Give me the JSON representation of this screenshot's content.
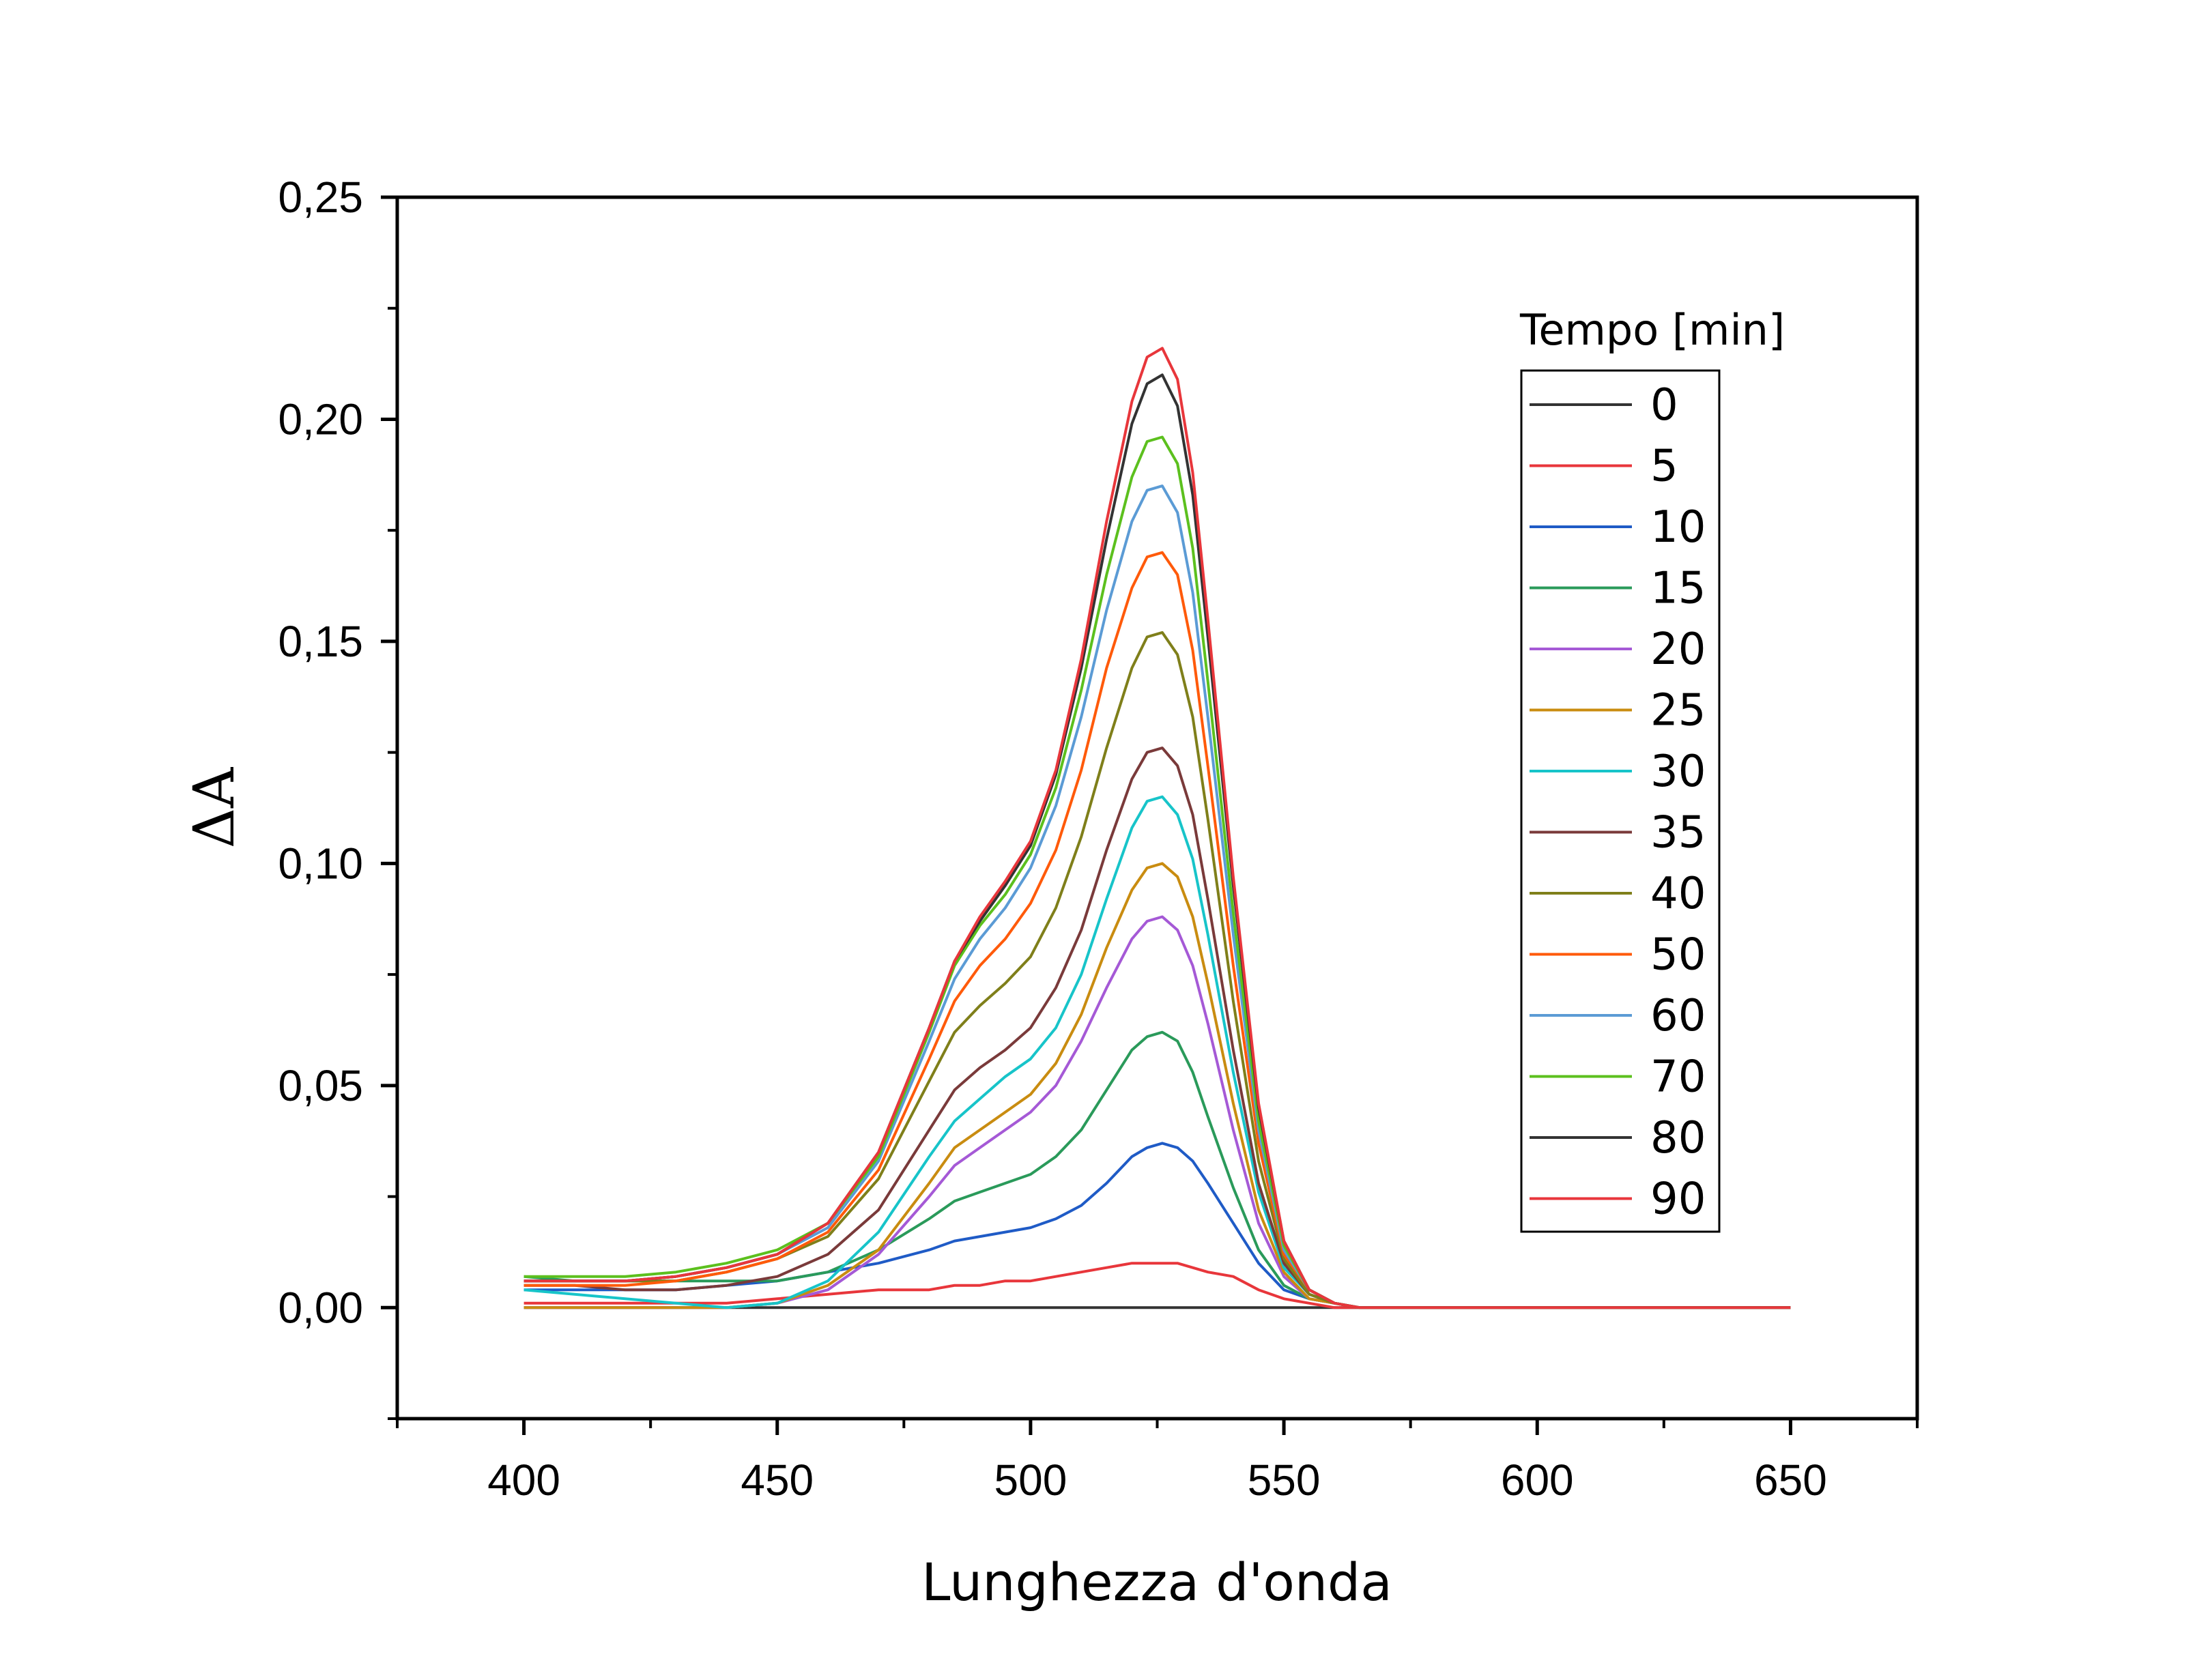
{
  "chart_data": {
    "type": "line",
    "title": "",
    "xlabel": "Lunghezza d'onda",
    "ylabel": "ΔA",
    "xlim": [
      375,
      675
    ],
    "ylim": [
      -0.025,
      0.25
    ],
    "xticks": [
      400,
      450,
      500,
      550,
      600,
      650
    ],
    "xtick_labels": [
      "400",
      "450",
      "500",
      "550",
      "600",
      "650"
    ],
    "yticks": [
      0.0,
      0.05,
      0.1,
      0.15,
      0.2,
      0.25
    ],
    "ytick_labels": [
      "0,00",
      "0,05",
      "0,10",
      "0,15",
      "0,20",
      "0,25"
    ],
    "grid": false,
    "legend_title": "Tempo [min]",
    "legend_position": "top-right",
    "x": [
      400,
      410,
      420,
      430,
      440,
      450,
      460,
      470,
      480,
      485,
      490,
      495,
      500,
      505,
      510,
      515,
      520,
      523,
      526,
      529,
      532,
      535,
      540,
      545,
      550,
      555,
      560,
      565,
      570,
      580,
      590,
      600,
      620,
      650
    ],
    "series": [
      {
        "name": "0",
        "color": "#333333",
        "values": [
          0,
          0,
          0,
          0,
          0,
          0,
          0,
          0,
          0,
          0,
          0,
          0,
          0,
          0,
          0,
          0,
          0,
          0,
          0,
          0,
          0,
          0,
          0,
          0,
          0,
          0,
          0,
          0,
          0,
          0,
          0,
          0,
          0,
          0
        ]
      },
      {
        "name": "5",
        "color": "#e8363b",
        "values": [
          0.001,
          0.001,
          0.001,
          0.001,
          0.001,
          0.002,
          0.003,
          0.004,
          0.004,
          0.005,
          0.005,
          0.006,
          0.006,
          0.007,
          0.008,
          0.009,
          0.01,
          0.01,
          0.01,
          0.01,
          0.009,
          0.008,
          0.007,
          0.004,
          0.002,
          0.001,
          0.0,
          0.0,
          0.0,
          0.0,
          0.0,
          0.0,
          0.0,
          0.0
        ]
      },
      {
        "name": "10",
        "color": "#1f5bc6",
        "values": [
          0.004,
          0.004,
          0.004,
          0.004,
          0.005,
          0.006,
          0.008,
          0.01,
          0.013,
          0.015,
          0.016,
          0.017,
          0.018,
          0.02,
          0.023,
          0.028,
          0.034,
          0.036,
          0.037,
          0.036,
          0.033,
          0.028,
          0.019,
          0.01,
          0.004,
          0.002,
          0.001,
          0.0,
          0.0,
          0.0,
          0.0,
          0.0,
          0.0,
          0.0
        ]
      },
      {
        "name": "15",
        "color": "#2a9a5a",
        "values": [
          0.007,
          0.006,
          0.006,
          0.006,
          0.006,
          0.006,
          0.008,
          0.013,
          0.02,
          0.024,
          0.026,
          0.028,
          0.03,
          0.034,
          0.04,
          0.049,
          0.058,
          0.061,
          0.062,
          0.06,
          0.053,
          0.043,
          0.027,
          0.013,
          0.005,
          0.002,
          0.001,
          0.0,
          0.0,
          0.0,
          0.0,
          0.0,
          0.0,
          0.0
        ]
      },
      {
        "name": "20",
        "color": "#a559d6",
        "values": [
          0.0,
          0.0,
          0.0,
          0.0,
          0.0,
          0.001,
          0.004,
          0.012,
          0.025,
          0.032,
          0.036,
          0.04,
          0.044,
          0.05,
          0.06,
          0.072,
          0.083,
          0.087,
          0.088,
          0.085,
          0.077,
          0.064,
          0.04,
          0.019,
          0.007,
          0.002,
          0.001,
          0.0,
          0.0,
          0.0,
          0.0,
          0.0,
          0.0,
          0.0
        ]
      },
      {
        "name": "25",
        "color": "#c98c10",
        "values": [
          0.0,
          0.0,
          0.0,
          0.0,
          0.0,
          0.001,
          0.005,
          0.013,
          0.028,
          0.036,
          0.04,
          0.044,
          0.048,
          0.055,
          0.066,
          0.081,
          0.094,
          0.099,
          0.1,
          0.097,
          0.088,
          0.073,
          0.046,
          0.022,
          0.008,
          0.002,
          0.001,
          0.0,
          0.0,
          0.0,
          0.0,
          0.0,
          0.0,
          0.0
        ]
      },
      {
        "name": "30",
        "color": "#17c4c9",
        "values": [
          0.004,
          0.003,
          0.002,
          0.001,
          0.0,
          0.001,
          0.006,
          0.017,
          0.034,
          0.042,
          0.047,
          0.052,
          0.056,
          0.063,
          0.075,
          0.092,
          0.108,
          0.114,
          0.115,
          0.111,
          0.101,
          0.084,
          0.053,
          0.026,
          0.009,
          0.003,
          0.001,
          0.0,
          0.0,
          0.0,
          0.0,
          0.0,
          0.0,
          0.0
        ]
      },
      {
        "name": "35",
        "color": "#7a3a3a",
        "values": [
          0.005,
          0.005,
          0.004,
          0.004,
          0.005,
          0.007,
          0.012,
          0.022,
          0.04,
          0.049,
          0.054,
          0.058,
          0.063,
          0.072,
          0.085,
          0.103,
          0.119,
          0.125,
          0.126,
          0.122,
          0.111,
          0.092,
          0.058,
          0.028,
          0.01,
          0.003,
          0.001,
          0.0,
          0.0,
          0.0,
          0.0,
          0.0,
          0.0,
          0.0
        ]
      },
      {
        "name": "40",
        "color": "#7f7f1a",
        "values": [
          0.006,
          0.006,
          0.006,
          0.006,
          0.008,
          0.011,
          0.016,
          0.029,
          0.051,
          0.062,
          0.068,
          0.073,
          0.079,
          0.09,
          0.106,
          0.126,
          0.144,
          0.151,
          0.152,
          0.147,
          0.133,
          0.11,
          0.069,
          0.033,
          0.011,
          0.003,
          0.001,
          0.0,
          0.0,
          0.0,
          0.0,
          0.0,
          0.0,
          0.0
        ]
      },
      {
        "name": "50",
        "color": "#ff5a0a",
        "values": [
          0.005,
          0.005,
          0.005,
          0.006,
          0.008,
          0.011,
          0.017,
          0.031,
          0.056,
          0.069,
          0.077,
          0.083,
          0.091,
          0.103,
          0.121,
          0.144,
          0.162,
          0.169,
          0.17,
          0.165,
          0.148,
          0.122,
          0.077,
          0.037,
          0.012,
          0.004,
          0.001,
          0.0,
          0.0,
          0.0,
          0.0,
          0.0,
          0.0,
          0.0
        ]
      },
      {
        "name": "60",
        "color": "#5b9bd5",
        "values": [
          0.006,
          0.006,
          0.006,
          0.007,
          0.009,
          0.012,
          0.018,
          0.033,
          0.06,
          0.074,
          0.083,
          0.09,
          0.099,
          0.113,
          0.133,
          0.157,
          0.177,
          0.184,
          0.185,
          0.179,
          0.161,
          0.133,
          0.084,
          0.04,
          0.013,
          0.004,
          0.001,
          0.0,
          0.0,
          0.0,
          0.0,
          0.0,
          0.0,
          0.0
        ]
      },
      {
        "name": "70",
        "color": "#5cc01e",
        "values": [
          0.007,
          0.007,
          0.007,
          0.008,
          0.01,
          0.013,
          0.019,
          0.034,
          0.062,
          0.077,
          0.086,
          0.093,
          0.102,
          0.117,
          0.139,
          0.165,
          0.187,
          0.195,
          0.196,
          0.19,
          0.171,
          0.141,
          0.089,
          0.042,
          0.014,
          0.004,
          0.001,
          0.0,
          0.0,
          0.0,
          0.0,
          0.0,
          0.0,
          0.0
        ]
      },
      {
        "name": "80",
        "color": "#333333",
        "values": [
          0.006,
          0.006,
          0.006,
          0.007,
          0.009,
          0.012,
          0.019,
          0.035,
          0.063,
          0.078,
          0.087,
          0.095,
          0.104,
          0.12,
          0.144,
          0.173,
          0.199,
          0.208,
          0.21,
          0.203,
          0.183,
          0.151,
          0.095,
          0.045,
          0.015,
          0.004,
          0.001,
          0.0,
          0.0,
          0.0,
          0.0,
          0.0,
          0.0,
          0.0
        ]
      },
      {
        "name": "90",
        "color": "#e8363b",
        "values": [
          0.006,
          0.006,
          0.006,
          0.007,
          0.009,
          0.012,
          0.019,
          0.035,
          0.063,
          0.078,
          0.088,
          0.096,
          0.105,
          0.121,
          0.146,
          0.177,
          0.204,
          0.214,
          0.216,
          0.209,
          0.188,
          0.155,
          0.097,
          0.046,
          0.015,
          0.004,
          0.001,
          0.0,
          0.0,
          0.0,
          0.0,
          0.0,
          0.0,
          0.0
        ]
      }
    ]
  }
}
